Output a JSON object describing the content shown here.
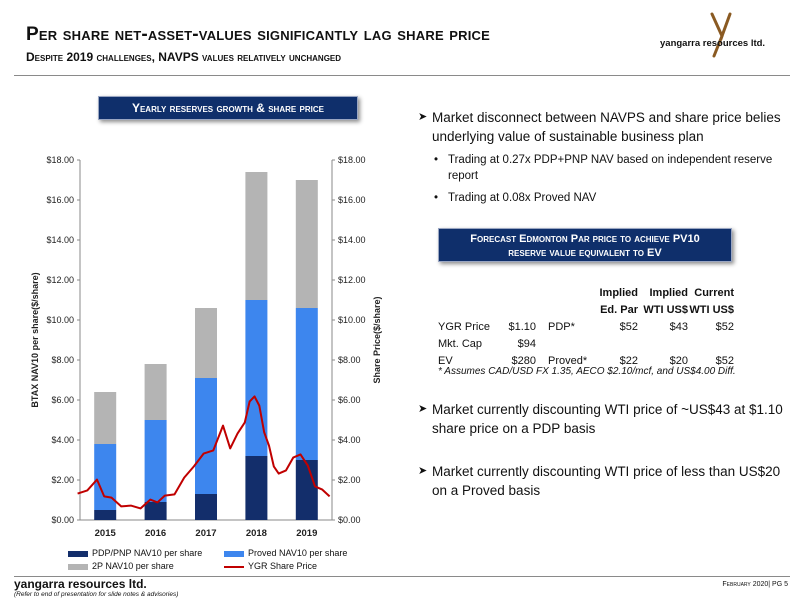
{
  "header": {
    "title": "Per share net-asset-values significantly lag share price",
    "subtitle": "Despite 2019 challenges, NAVPS values relatively unchanged",
    "logo_text": "yangarra resources ltd."
  },
  "banner_left": "Yearly reserves growth & share price performance",
  "banner_right_line1": "Forecast Edmonton Par price to achieve PV10",
  "banner_right_line2": "reserve value equivalent to EV",
  "bullets": {
    "b1": "Market disconnect between NAVPS and share price belies underlying value of sustainable business plan",
    "b1_sub1": "Trading at 0.27x PDP+PNP NAV based on independent reserve report",
    "b1_sub2": "Trading at 0.08x Proved NAV",
    "b2": "Market currently discounting WTI price of ~US$43 at $1.10 share price on a PDP basis",
    "b3": "Market currently discounting WTI price of less than US$20 on a Proved basis"
  },
  "table": {
    "hdr_implied1": "Implied",
    "hdr_implied2": "Implied",
    "hdr_current": "Current",
    "hdr_edpar": "Ed. Par",
    "hdr_wti1": "WTI US$",
    "hdr_wti2": "WTI US$",
    "r1_label": "YGR Price",
    "r1_val": "$1.10",
    "r1_cat": "PDP*",
    "r1_c1": "$52",
    "r1_c2": "$43",
    "r1_c3": "$52",
    "r2_label": "Mkt. Cap",
    "r2_val": "$94",
    "r3_label": "EV",
    "r3_val": "$280",
    "r3_cat": "Proved*",
    "r3_c1": "$22",
    "r3_c2": "$20",
    "r3_c3": "$52",
    "note": "* Assumes CAD/USD FX 1.35, AECO $2.10/mcf, and US$4.00 Diff."
  },
  "footer": {
    "logo": "yangarra resources ltd.",
    "ref": "(Refer to end of presentation for slide notes & advisories)",
    "page": "February 2020| PG 5"
  },
  "colors": {
    "navy": "#0f2f6b",
    "pdp": "#132e6b",
    "proved": "#3d86ee",
    "twop": "#b4b4b4",
    "price": "#c00000"
  },
  "chart_data": {
    "type": "bar",
    "categories": [
      "2015",
      "2016",
      "2017",
      "2018",
      "2019"
    ],
    "ylabel": "BTAX NAV10 per share($/share)",
    "y2label": "Share Price($/share)",
    "ylim": [
      0,
      18
    ],
    "yticks": [
      "$0.00",
      "$2.00",
      "$4.00",
      "$6.00",
      "$8.00",
      "$10.00",
      "$12.00",
      "$14.00",
      "$16.00",
      "$18.00"
    ],
    "series": [
      {
        "name": "PDP/PNP NAV10 per share",
        "values": [
          0.5,
          0.9,
          1.3,
          3.2,
          3.0
        ]
      },
      {
        "name": "Proved NAV10 per share",
        "values": [
          3.8,
          5.0,
          7.1,
          11.0,
          10.6
        ]
      },
      {
        "name": "2P NAV10 per share",
        "values": [
          6.4,
          7.8,
          10.6,
          17.4,
          17.0
        ]
      }
    ],
    "line_series": {
      "name": "YGR Share Price",
      "x": [
        2014.4,
        2014.6,
        2014.8,
        2014.95,
        2015.1,
        2015.3,
        2015.5,
        2015.7,
        2015.9,
        2016.05,
        2016.2,
        2016.4,
        2016.6,
        2016.8,
        2017.0,
        2017.2,
        2017.4,
        2017.55,
        2017.7,
        2017.85,
        2017.95,
        2018.05,
        2018.15,
        2018.25,
        2018.35,
        2018.45,
        2018.55,
        2018.7,
        2018.85,
        2019.0,
        2019.15,
        2019.3,
        2019.45,
        2019.6
      ],
      "y": [
        1.2,
        1.6,
        1.9,
        1.3,
        1.0,
        0.8,
        0.6,
        0.7,
        0.9,
        1.0,
        1.1,
        1.4,
        2.0,
        2.8,
        3.2,
        3.6,
        4.6,
        3.7,
        4.2,
        5.0,
        5.8,
        6.3,
        5.6,
        4.5,
        3.6,
        2.8,
        2.2,
        2.6,
        3.0,
        3.4,
        2.6,
        1.8,
        1.4,
        1.3
      ]
    },
    "legend_position": "bottom"
  }
}
